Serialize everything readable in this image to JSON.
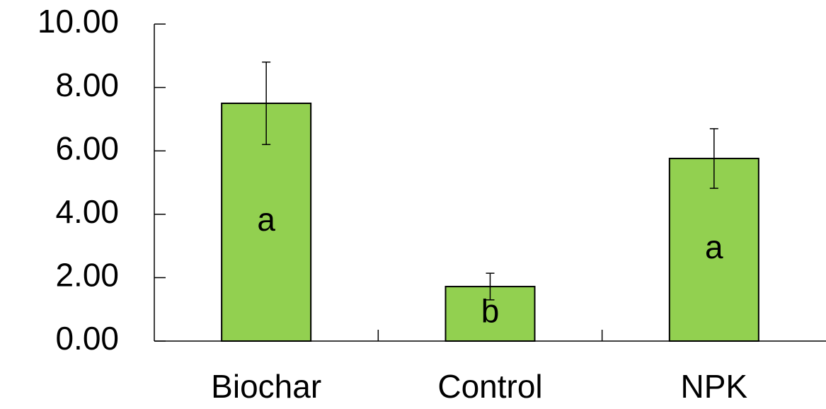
{
  "chart_data": {
    "type": "bar",
    "categories": [
      "Biochar",
      "Control",
      "NPK"
    ],
    "values": [
      7.5,
      1.72,
      5.76
    ],
    "errors": [
      1.3,
      0.42,
      0.94
    ],
    "letters": [
      "a",
      "b",
      "a"
    ],
    "color": "#92d050",
    "ylim": [
      0,
      10
    ],
    "yticks": [
      {
        "value": 0,
        "label": "0.00"
      },
      {
        "value": 2,
        "label": "2.00"
      },
      {
        "value": 4,
        "label": "4.00"
      },
      {
        "value": 6,
        "label": "6.00"
      },
      {
        "value": 8,
        "label": "8.00"
      },
      {
        "value": 10,
        "label": "10.00"
      }
    ]
  }
}
